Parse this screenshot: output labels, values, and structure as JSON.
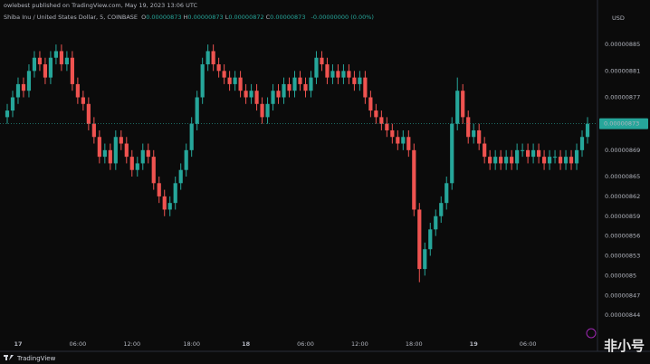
{
  "chart_data": {
    "type": "candlestick",
    "publisher": "owlebest published on TradingView.com, May 19, 2023 13:06 UTC",
    "title": "Shiba Inu / United States Dollar, 5, COINBASE",
    "ohlc_legend": [
      {
        "label": "O",
        "value": "0.00000873"
      },
      {
        "label": "H",
        "value": "0.00000873"
      },
      {
        "label": "L",
        "value": "0.00000872"
      },
      {
        "label": "C",
        "value": "0.00000873"
      }
    ],
    "change": "-0.00000000 (0.00%)",
    "y_axis_label": "USD",
    "current_price": 8.73e-06,
    "up_color": "#26a69a",
    "down_color": "#ef5350",
    "grid": false,
    "xlim": [
      -0.5,
      107.5
    ],
    "xticks": [
      {
        "value": 2,
        "label": "17"
      },
      {
        "value": 13,
        "label": "06:00"
      },
      {
        "value": 23,
        "label": "12:00"
      },
      {
        "value": 34,
        "label": "18:00"
      },
      {
        "value": 44,
        "label": "18"
      },
      {
        "value": 55,
        "label": "06:00"
      },
      {
        "value": 65,
        "label": "12:00"
      },
      {
        "value": 75,
        "label": "18:00"
      },
      {
        "value": 86,
        "label": "19"
      },
      {
        "value": 96,
        "label": "06:00"
      }
    ],
    "ylim": [
      8.41e-06,
      8.89e-06
    ],
    "yticks": [
      8.85e-06,
      8.81e-06,
      8.77e-06,
      8.69e-06,
      8.65e-06,
      8.62e-06,
      8.59e-06,
      8.56e-06,
      8.53e-06,
      8.5e-06,
      8.47e-06,
      8.44e-06
    ],
    "open": [
      8.74e-06,
      8.75e-06,
      8.77e-06,
      8.79e-06,
      8.78e-06,
      8.81e-06,
      8.83e-06,
      8.82e-06,
      8.8e-06,
      8.83e-06,
      8.84e-06,
      8.82e-06,
      8.83e-06,
      8.79e-06,
      8.77e-06,
      8.76e-06,
      8.73e-06,
      8.71e-06,
      8.68e-06,
      8.69e-06,
      8.67e-06,
      8.71e-06,
      8.7e-06,
      8.68e-06,
      8.66e-06,
      8.67e-06,
      8.69e-06,
      8.68e-06,
      8.64e-06,
      8.62e-06,
      8.6e-06,
      8.61e-06,
      8.64e-06,
      8.66e-06,
      8.69e-06,
      8.73e-06,
      8.77e-06,
      8.82e-06,
      8.84e-06,
      8.82e-06,
      8.81e-06,
      8.8e-06,
      8.79e-06,
      8.8e-06,
      8.78e-06,
      8.77e-06,
      8.78e-06,
      8.76e-06,
      8.74e-06,
      8.76e-06,
      8.78e-06,
      8.77e-06,
      8.79e-06,
      8.78e-06,
      8.8e-06,
      8.79e-06,
      8.78e-06,
      8.8e-06,
      8.83e-06,
      8.82e-06,
      8.8e-06,
      8.81e-06,
      8.8e-06,
      8.81e-06,
      8.8e-06,
      8.79e-06,
      8.8e-06,
      8.77e-06,
      8.75e-06,
      8.74e-06,
      8.73e-06,
      8.72e-06,
      8.71e-06,
      8.7e-06,
      8.71e-06,
      8.69e-06,
      8.6e-06,
      8.51e-06,
      8.54e-06,
      8.57e-06,
      8.59e-06,
      8.61e-06,
      8.64e-06,
      8.73e-06,
      8.78e-06,
      8.74e-06,
      8.71e-06,
      8.72e-06,
      8.7e-06,
      8.68e-06,
      8.67e-06,
      8.68e-06,
      8.67e-06,
      8.68e-06,
      8.67e-06,
      8.69e-06,
      8.69e-06,
      8.68e-06,
      8.69e-06,
      8.68e-06,
      8.67e-06,
      8.68e-06,
      8.68e-06,
      8.67e-06,
      8.68e-06,
      8.67e-06,
      8.69e-06,
      8.71e-06
    ],
    "high": [
      8.76e-06,
      8.78e-06,
      8.8e-06,
      8.8e-06,
      8.82e-06,
      8.84e-06,
      8.84e-06,
      8.83e-06,
      8.84e-06,
      8.85e-06,
      8.85e-06,
      8.84e-06,
      8.84e-06,
      8.8e-06,
      8.78e-06,
      8.77e-06,
      8.74e-06,
      8.72e-06,
      8.7e-06,
      8.7e-06,
      8.72e-06,
      8.72e-06,
      8.71e-06,
      8.69e-06,
      8.68e-06,
      8.7e-06,
      8.7e-06,
      8.69e-06,
      8.65e-06,
      8.63e-06,
      8.62e-06,
      8.65e-06,
      8.67e-06,
      8.7e-06,
      8.74e-06,
      8.78e-06,
      8.83e-06,
      8.85e-06,
      8.85e-06,
      8.83e-06,
      8.82e-06,
      8.81e-06,
      8.81e-06,
      8.81e-06,
      8.79e-06,
      8.79e-06,
      8.79e-06,
      8.77e-06,
      8.77e-06,
      8.79e-06,
      8.79e-06,
      8.8e-06,
      8.8e-06,
      8.81e-06,
      8.81e-06,
      8.8e-06,
      8.81e-06,
      8.84e-06,
      8.84e-06,
      8.83e-06,
      8.82e-06,
      8.82e-06,
      8.82e-06,
      8.82e-06,
      8.81e-06,
      8.81e-06,
      8.81e-06,
      8.78e-06,
      8.76e-06,
      8.75e-06,
      8.74e-06,
      8.73e-06,
      8.72e-06,
      8.72e-06,
      8.72e-06,
      8.7e-06,
      8.61e-06,
      8.55e-06,
      8.58e-06,
      8.6e-06,
      8.62e-06,
      8.65e-06,
      8.74e-06,
      8.8e-06,
      8.79e-06,
      8.75e-06,
      8.73e-06,
      8.73e-06,
      8.71e-06,
      8.69e-06,
      8.69e-06,
      8.69e-06,
      8.69e-06,
      8.69e-06,
      8.7e-06,
      8.7e-06,
      8.7e-06,
      8.7e-06,
      8.7e-06,
      8.69e-06,
      8.69e-06,
      8.69e-06,
      8.69e-06,
      8.69e-06,
      8.69e-06,
      8.7e-06,
      8.72e-06,
      8.74e-06
    ],
    "low": [
      8.73e-06,
      8.74e-06,
      8.76e-06,
      8.77e-06,
      8.77e-06,
      8.8e-06,
      8.81e-06,
      8.79e-06,
      8.79e-06,
      8.82e-06,
      8.81e-06,
      8.81e-06,
      8.78e-06,
      8.76e-06,
      8.75e-06,
      8.72e-06,
      8.7e-06,
      8.67e-06,
      8.67e-06,
      8.66e-06,
      8.66e-06,
      8.69e-06,
      8.67e-06,
      8.65e-06,
      8.65e-06,
      8.66e-06,
      8.67e-06,
      8.63e-06,
      8.61e-06,
      8.59e-06,
      8.59e-06,
      8.6e-06,
      8.63e-06,
      8.65e-06,
      8.68e-06,
      8.72e-06,
      8.76e-06,
      8.81e-06,
      8.81e-06,
      8.8e-06,
      8.79e-06,
      8.78e-06,
      8.78e-06,
      8.77e-06,
      8.76e-06,
      8.76e-06,
      8.75e-06,
      8.73e-06,
      8.73e-06,
      8.75e-06,
      8.76e-06,
      8.76e-06,
      8.77e-06,
      8.77e-06,
      8.78e-06,
      8.77e-06,
      8.77e-06,
      8.79e-06,
      8.81e-06,
      8.79e-06,
      8.79e-06,
      8.79e-06,
      8.79e-06,
      8.79e-06,
      8.78e-06,
      8.78e-06,
      8.76e-06,
      8.74e-06,
      8.73e-06,
      8.72e-06,
      8.71e-06,
      8.7e-06,
      8.69e-06,
      8.69e-06,
      8.68e-06,
      8.59e-06,
      8.49e-06,
      8.5e-06,
      8.53e-06,
      8.56e-06,
      8.58e-06,
      8.6e-06,
      8.63e-06,
      8.72e-06,
      8.73e-06,
      8.7e-06,
      8.7e-06,
      8.69e-06,
      8.67e-06,
      8.66e-06,
      8.66e-06,
      8.66e-06,
      8.66e-06,
      8.66e-06,
      8.66e-06,
      8.68e-06,
      8.67e-06,
      8.67e-06,
      8.67e-06,
      8.66e-06,
      8.66e-06,
      8.67e-06,
      8.66e-06,
      8.66e-06,
      8.66e-06,
      8.66e-06,
      8.68e-06,
      8.7e-06
    ],
    "close": [
      8.75e-06,
      8.77e-06,
      8.79e-06,
      8.78e-06,
      8.81e-06,
      8.83e-06,
      8.82e-06,
      8.8e-06,
      8.83e-06,
      8.84e-06,
      8.82e-06,
      8.83e-06,
      8.79e-06,
      8.77e-06,
      8.76e-06,
      8.73e-06,
      8.71e-06,
      8.68e-06,
      8.69e-06,
      8.67e-06,
      8.71e-06,
      8.7e-06,
      8.68e-06,
      8.66e-06,
      8.67e-06,
      8.69e-06,
      8.68e-06,
      8.64e-06,
      8.62e-06,
      8.6e-06,
      8.61e-06,
      8.64e-06,
      8.66e-06,
      8.69e-06,
      8.73e-06,
      8.77e-06,
      8.82e-06,
      8.84e-06,
      8.82e-06,
      8.81e-06,
      8.8e-06,
      8.79e-06,
      8.8e-06,
      8.78e-06,
      8.77e-06,
      8.78e-06,
      8.76e-06,
      8.74e-06,
      8.76e-06,
      8.78e-06,
      8.77e-06,
      8.79e-06,
      8.78e-06,
      8.8e-06,
      8.79e-06,
      8.78e-06,
      8.8e-06,
      8.83e-06,
      8.82e-06,
      8.8e-06,
      8.81e-06,
      8.8e-06,
      8.81e-06,
      8.8e-06,
      8.79e-06,
      8.8e-06,
      8.77e-06,
      8.75e-06,
      8.74e-06,
      8.73e-06,
      8.72e-06,
      8.71e-06,
      8.7e-06,
      8.71e-06,
      8.69e-06,
      8.6e-06,
      8.51e-06,
      8.54e-06,
      8.57e-06,
      8.59e-06,
      8.61e-06,
      8.64e-06,
      8.73e-06,
      8.78e-06,
      8.74e-06,
      8.71e-06,
      8.72e-06,
      8.7e-06,
      8.68e-06,
      8.67e-06,
      8.68e-06,
      8.67e-06,
      8.68e-06,
      8.67e-06,
      8.69e-06,
      8.69e-06,
      8.68e-06,
      8.69e-06,
      8.68e-06,
      8.67e-06,
      8.68e-06,
      8.68e-06,
      8.67e-06,
      8.68e-06,
      8.67e-06,
      8.69e-06,
      8.71e-06,
      8.73e-06
    ]
  },
  "footer": {
    "brand": "TradingView",
    "watermark": "非小号"
  }
}
